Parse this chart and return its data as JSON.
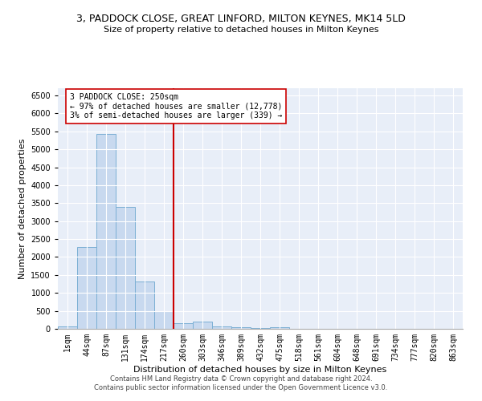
{
  "title": "3, PADDOCK CLOSE, GREAT LINFORD, MILTON KEYNES, MK14 5LD",
  "subtitle": "Size of property relative to detached houses in Milton Keynes",
  "xlabel": "Distribution of detached houses by size in Milton Keynes",
  "ylabel": "Number of detached properties",
  "footer_line1": "Contains HM Land Registry data © Crown copyright and database right 2024.",
  "footer_line2": "Contains public sector information licensed under the Open Government Licence v3.0.",
  "bar_labels": [
    "1sqm",
    "44sqm",
    "87sqm",
    "131sqm",
    "174sqm",
    "217sqm",
    "260sqm",
    "303sqm",
    "346sqm",
    "389sqm",
    "432sqm",
    "475sqm",
    "518sqm",
    "561sqm",
    "604sqm",
    "648sqm",
    "691sqm",
    "734sqm",
    "777sqm",
    "820sqm",
    "863sqm"
  ],
  "bar_values": [
    70,
    2280,
    5420,
    3400,
    1310,
    490,
    165,
    190,
    75,
    45,
    25,
    50,
    5,
    3,
    2,
    1,
    1,
    0,
    0,
    0,
    0
  ],
  "bar_color": "#c8d9ef",
  "bar_edge_color": "#7bafd4",
  "vline_x": 6,
  "vline_color": "#cc0000",
  "annotation_text": "3 PADDOCK CLOSE: 250sqm\n← 97% of detached houses are smaller (12,778)\n3% of semi-detached houses are larger (339) →",
  "annotation_box_color": "#ffffff",
  "annotation_box_edge": "#cc0000",
  "ylim": [
    0,
    6700
  ],
  "yticks": [
    0,
    500,
    1000,
    1500,
    2000,
    2500,
    3000,
    3500,
    4000,
    4500,
    5000,
    5500,
    6000,
    6500
  ],
  "bg_color": "#e8eef8",
  "fig_bg_color": "#ffffff",
  "title_fontsize": 9,
  "subtitle_fontsize": 8,
  "xlabel_fontsize": 8,
  "ylabel_fontsize": 8,
  "tick_fontsize": 7,
  "annotation_fontsize": 7,
  "footer_fontsize": 6
}
